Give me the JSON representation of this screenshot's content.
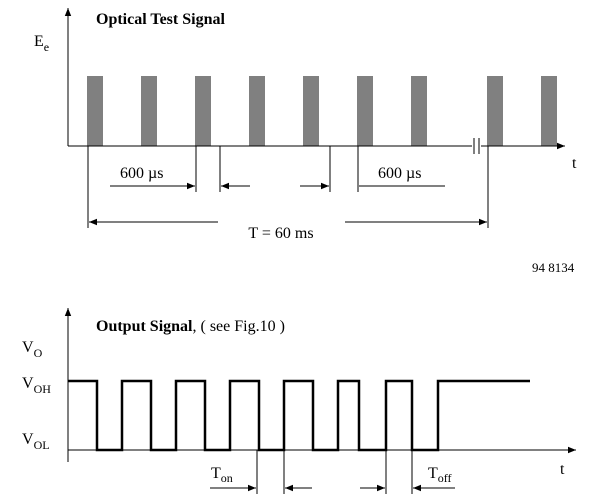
{
  "top": {
    "title": "Optical Test Signal",
    "ylabel": {
      "main": "E",
      "sub": "e"
    },
    "xlabel": "t",
    "dim1": "600 µs",
    "dim2": "600 µs",
    "period": "T = 60 ms"
  },
  "figure_id": "94 8134",
  "bottom": {
    "title": "Output Signal",
    "title_note": ", ( see Fig.10 )",
    "ylabel": {
      "main": "V",
      "sub": "O"
    },
    "high": {
      "main": "V",
      "sub": "OH"
    },
    "low": {
      "main": "V",
      "sub": "OL"
    },
    "xlabel": "t",
    "ton": {
      "main": "T",
      "sub": "on"
    },
    "toff": {
      "main": "T",
      "sub": "off"
    }
  }
}
